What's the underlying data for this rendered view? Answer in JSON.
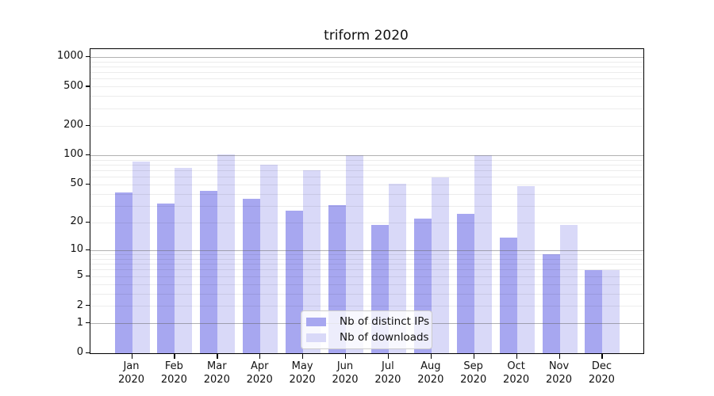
{
  "chart_data": {
    "type": "bar",
    "title": "triform 2020",
    "categories": [
      "Jan",
      "Feb",
      "Mar",
      "Apr",
      "May",
      "Jun",
      "Jul",
      "Aug",
      "Sep",
      "Oct",
      "Nov",
      "Dec"
    ],
    "x_sublabel": "2020",
    "series": [
      {
        "name": "Nb of distinct IPs",
        "color": "#a7a7f0",
        "values": [
          42,
          32,
          43,
          36,
          27,
          31,
          19,
          22,
          25,
          14,
          9,
          6
        ]
      },
      {
        "name": "Nb of downloads",
        "color": "#d9d9f8",
        "values": [
          86,
          74,
          103,
          80,
          70,
          101,
          51,
          60,
          101,
          48,
          19,
          6
        ]
      }
    ],
    "y_scale": "symlog",
    "ylim": [
      0,
      1200
    ],
    "y_ticks": [
      0,
      1,
      2,
      5,
      10,
      20,
      50,
      100,
      200,
      500,
      1000
    ],
    "y_major_gridlines": [
      1,
      10,
      100,
      1000
    ],
    "y_minor_gridlines": [
      2,
      3,
      4,
      5,
      6,
      7,
      8,
      9,
      20,
      30,
      40,
      50,
      60,
      70,
      80,
      90,
      200,
      300,
      400,
      500,
      600,
      700,
      800,
      900
    ],
    "grid": true,
    "legend_position": "inside-bottom-center"
  }
}
